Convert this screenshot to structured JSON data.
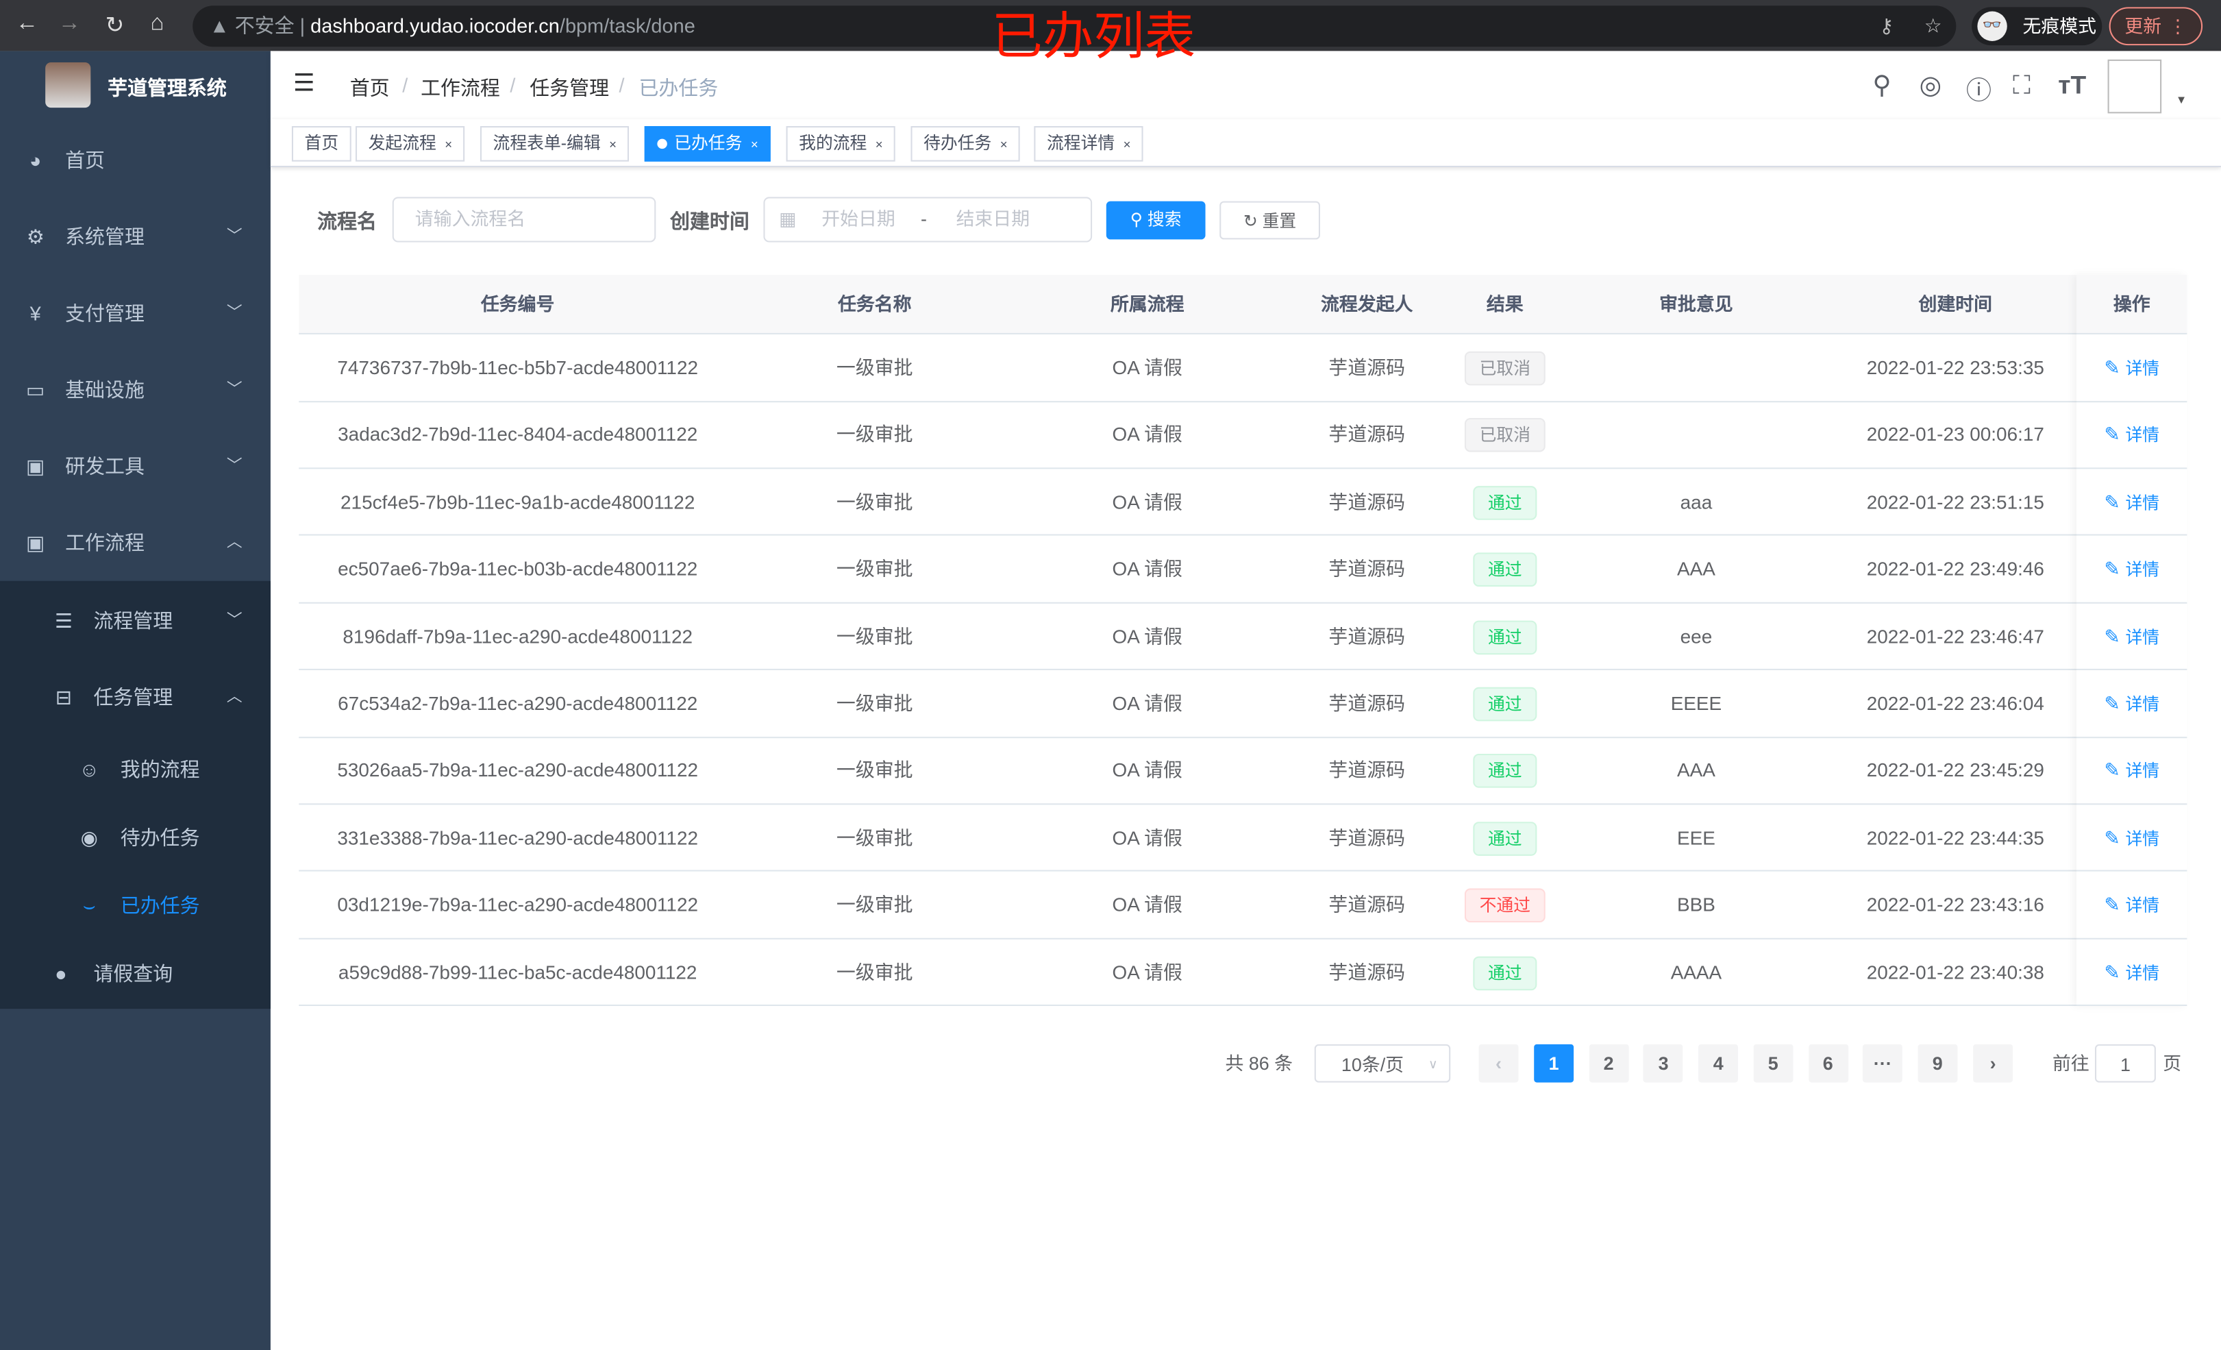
{
  "browser": {
    "url_host": "dashboard.yudao.iocoder.cn",
    "url_path": "/bpm/task/done",
    "insecure": "不安全",
    "incognito": "无痕模式",
    "update": "更新"
  },
  "annotation": "已办列表",
  "app": {
    "title": "芋道管理系统"
  },
  "sidebar": {
    "items": [
      {
        "label": "首页",
        "icon": "dashboard-icon"
      },
      {
        "label": "系统管理",
        "icon": "gear-icon"
      },
      {
        "label": "支付管理",
        "icon": "yen-icon"
      },
      {
        "label": "基础设施",
        "icon": "monitor-icon"
      },
      {
        "label": "研发工具",
        "icon": "toolbox-icon"
      },
      {
        "label": "工作流程",
        "icon": "toolbox-icon"
      }
    ],
    "sub": [
      {
        "label": "流程管理"
      },
      {
        "label": "任务管理"
      }
    ],
    "subsub": [
      {
        "label": "我的流程"
      },
      {
        "label": "待办任务"
      },
      {
        "label": "已办任务"
      }
    ],
    "leave": {
      "label": "请假查询"
    }
  },
  "breadcrumb": [
    "首页",
    "工作流程",
    "任务管理",
    "已办任务"
  ],
  "tags": [
    {
      "label": "首页"
    },
    {
      "label": "发起流程"
    },
    {
      "label": "流程表单-编辑"
    },
    {
      "label": "已办任务"
    },
    {
      "label": "我的流程"
    },
    {
      "label": "待办任务"
    },
    {
      "label": "流程详情"
    }
  ],
  "filter": {
    "name_label": "流程名",
    "name_placeholder": "请输入流程名",
    "time_label": "创建时间",
    "start_placeholder": "开始日期",
    "sep": "-",
    "end_placeholder": "结束日期",
    "search": "搜索",
    "reset": "重置"
  },
  "table": {
    "columns": [
      "任务编号",
      "任务名称",
      "所属流程",
      "流程发起人",
      "结果",
      "审批意见",
      "创建时间",
      "操作"
    ],
    "rows": [
      [
        "74736737-7b9b-11ec-b5b7-acde48001122",
        "一级审批",
        "OA 请假",
        "芋道源码",
        "已取消",
        "",
        "2022-01-22 23:53:35",
        "详情"
      ],
      [
        "3adac3d2-7b9d-11ec-8404-acde48001122",
        "一级审批",
        "OA 请假",
        "芋道源码",
        "已取消",
        "",
        "2022-01-23 00:06:17",
        "详情"
      ],
      [
        "215cf4e5-7b9b-11ec-9a1b-acde48001122",
        "一级审批",
        "OA 请假",
        "芋道源码",
        "通过",
        "aaa",
        "2022-01-22 23:51:15",
        "详情"
      ],
      [
        "ec507ae6-7b9a-11ec-b03b-acde48001122",
        "一级审批",
        "OA 请假",
        "芋道源码",
        "通过",
        "AAA",
        "2022-01-22 23:49:46",
        "详情"
      ],
      [
        "8196daff-7b9a-11ec-a290-acde48001122",
        "一级审批",
        "OA 请假",
        "芋道源码",
        "通过",
        "eee",
        "2022-01-22 23:46:47",
        "详情"
      ],
      [
        "67c534a2-7b9a-11ec-a290-acde48001122",
        "一级审批",
        "OA 请假",
        "芋道源码",
        "通过",
        "EEEE",
        "2022-01-22 23:46:04",
        "详情"
      ],
      [
        "53026aa5-7b9a-11ec-a290-acde48001122",
        "一级审批",
        "OA 请假",
        "芋道源码",
        "通过",
        "AAA",
        "2022-01-22 23:45:29",
        "详情"
      ],
      [
        "331e3388-7b9a-11ec-a290-acde48001122",
        "一级审批",
        "OA 请假",
        "芋道源码",
        "通过",
        "EEE",
        "2022-01-22 23:44:35",
        "详情"
      ],
      [
        "03d1219e-7b9a-11ec-a290-acde48001122",
        "一级审批",
        "OA 请假",
        "芋道源码",
        "不通过",
        "BBB",
        "2022-01-22 23:43:16",
        "详情"
      ],
      [
        "a59c9d88-7b99-11ec-ba5c-acde48001122",
        "一级审批",
        "OA 请假",
        "芋道源码",
        "通过",
        "AAAA",
        "2022-01-22 23:40:38",
        "详情"
      ]
    ]
  },
  "result_colors": {
    "已取消": "#909399",
    "通过": "#13ce66",
    "不通过": "#ff4949"
  },
  "pagination": {
    "total": "共 86 条",
    "page_size": "10条/页",
    "pages": [
      "1",
      "2",
      "3",
      "4",
      "5",
      "6",
      "···",
      "9"
    ],
    "current": "1",
    "goto_label": "前往",
    "goto_value": "1",
    "page_suffix": "页"
  },
  "accent": "#1890ff"
}
